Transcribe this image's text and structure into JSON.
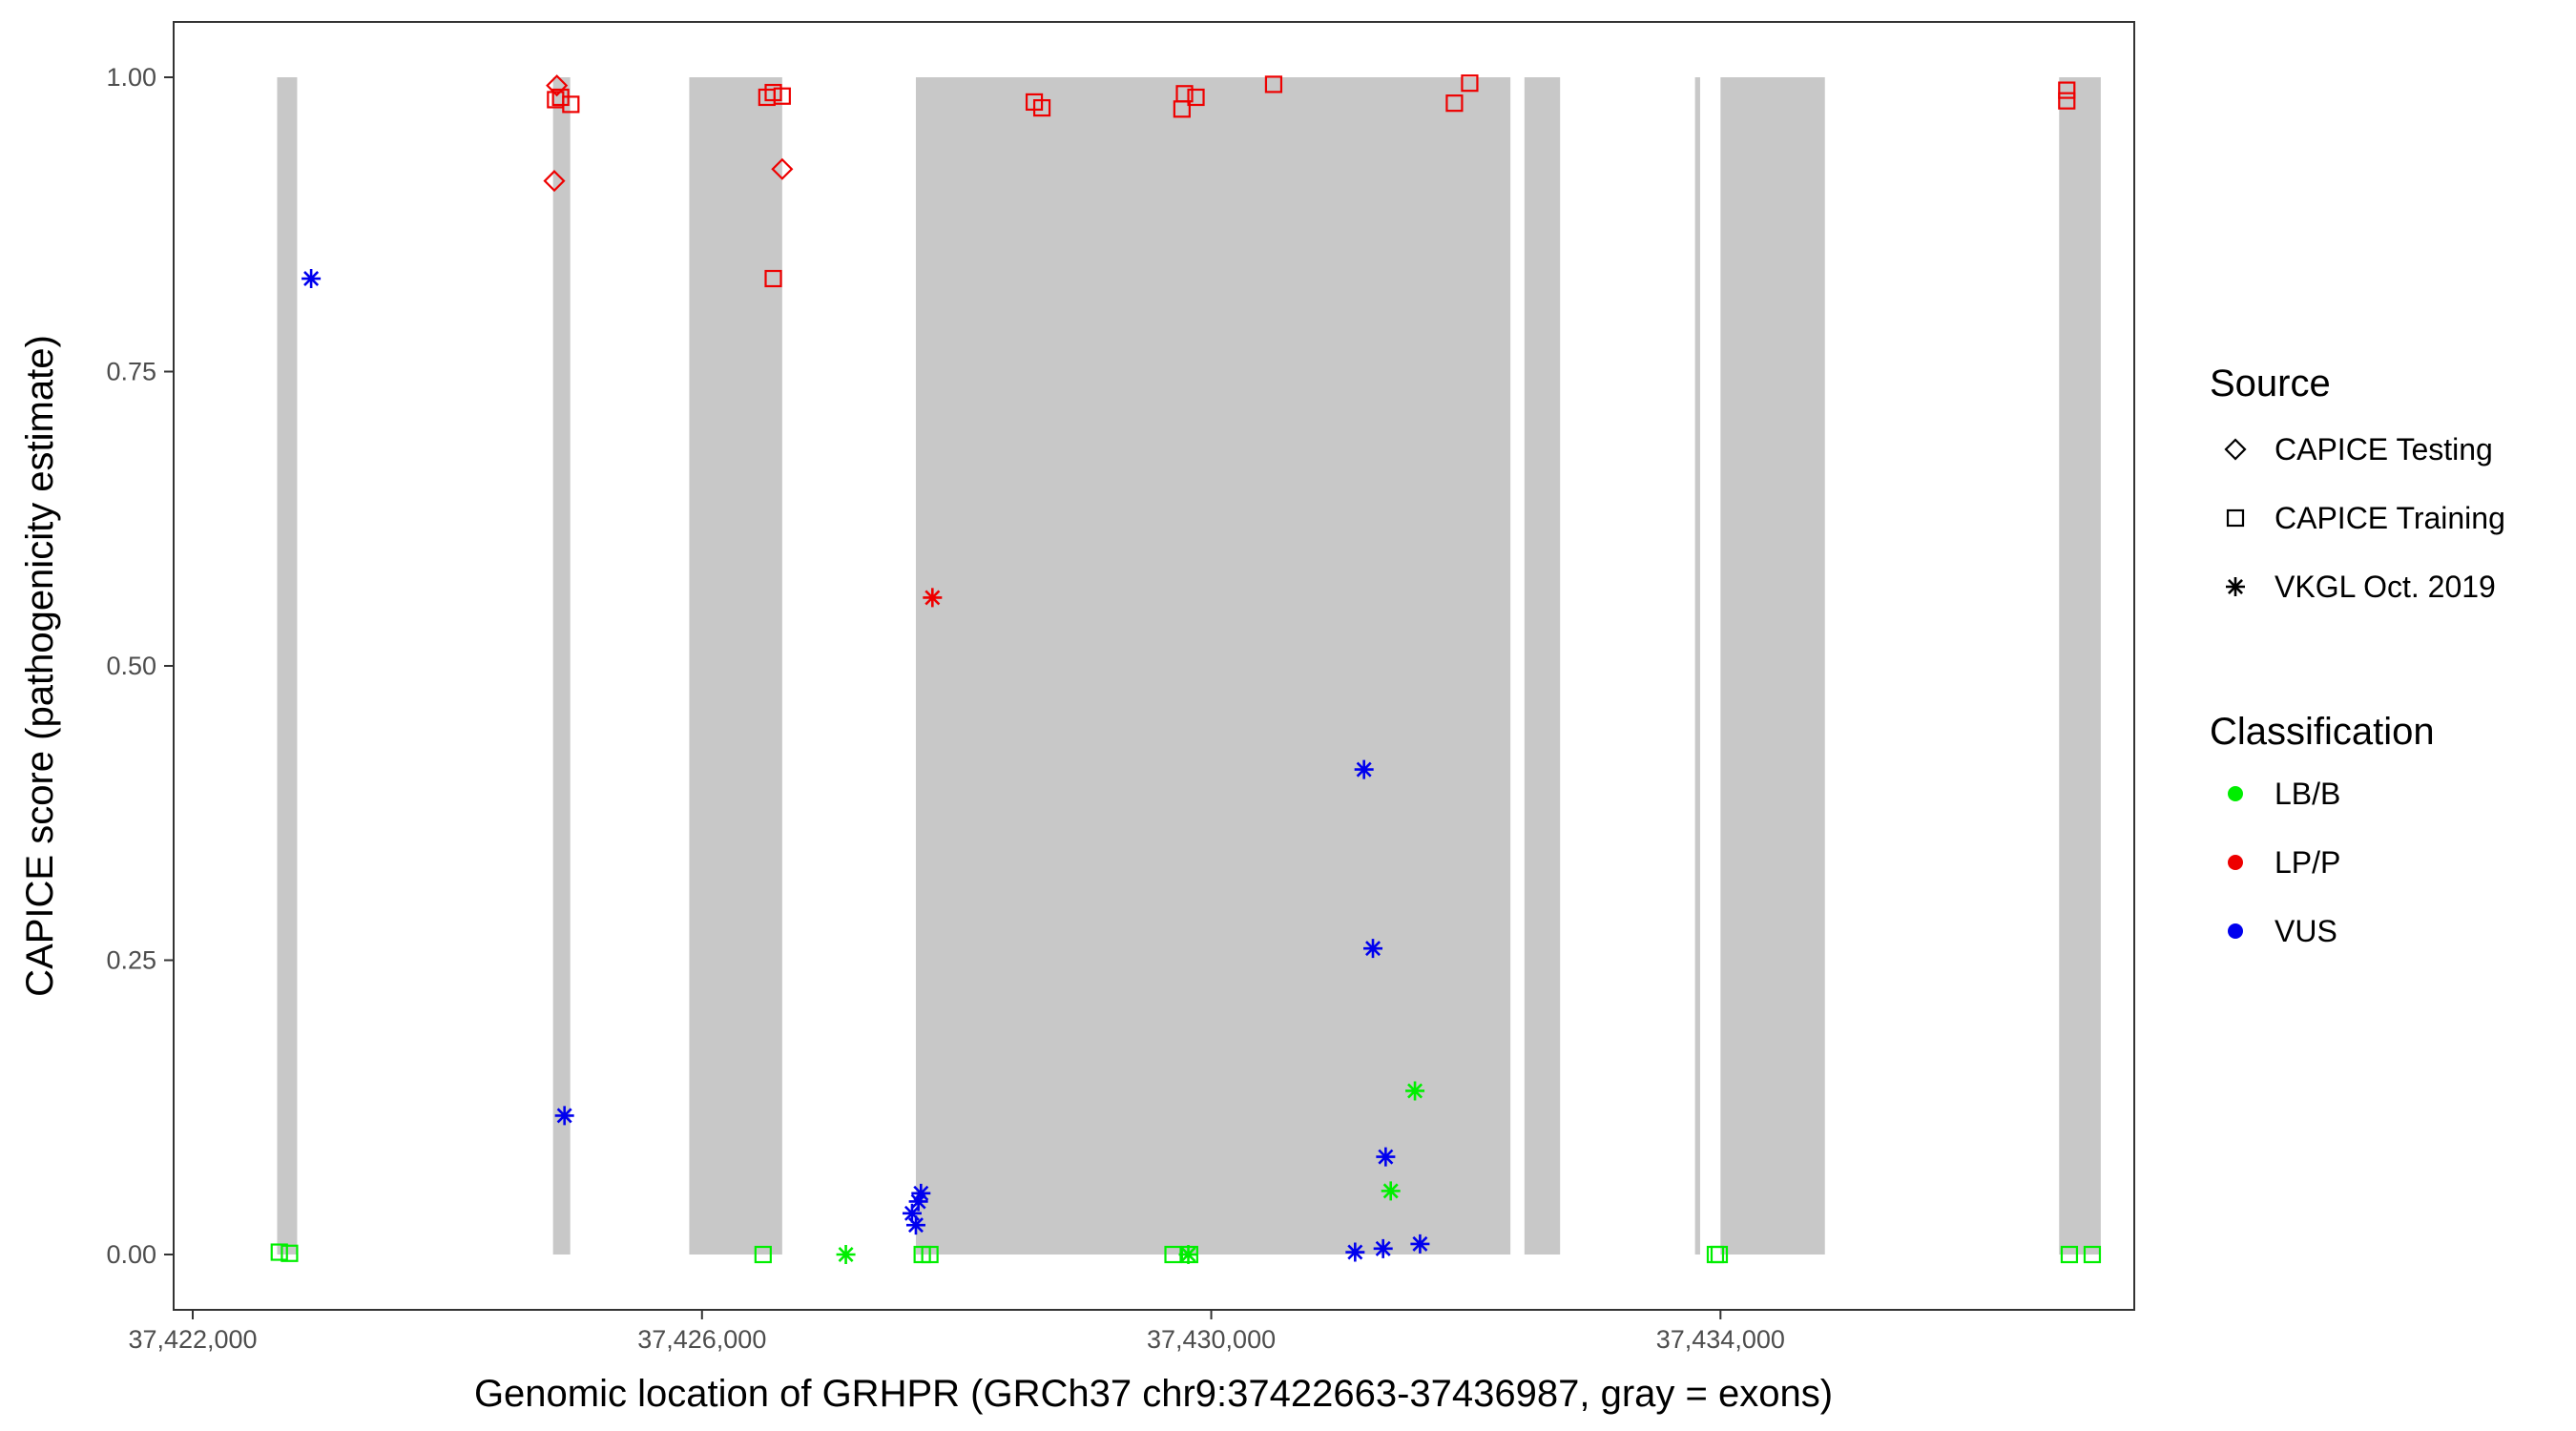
{
  "chart_data": {
    "type": "scatter",
    "title": "",
    "xlabel": "Genomic location of GRHPR (GRCh37 chr9:37422663-37436987, gray = exons)",
    "ylabel": "CAPICE score (pathogenicity estimate)",
    "xlim": [
      37421850,
      37437250
    ],
    "ylim": [
      -0.047,
      1.047
    ],
    "x_ticks": [
      37422000,
      37426000,
      37430000,
      37434000
    ],
    "x_tick_labels": [
      "37,422,000",
      "37,426,000",
      "37,430,000",
      "37,434,000"
    ],
    "y_ticks": [
      0,
      0.25,
      0.5,
      0.75,
      1.0
    ],
    "y_tick_labels": [
      "0.00",
      "0.25",
      "0.50",
      "0.75",
      "1.00"
    ],
    "grid": false,
    "exons": [
      {
        "start": 37422663,
        "end": 37422820
      },
      {
        "start": 37424830,
        "end": 37424965
      },
      {
        "start": 37425900,
        "end": 37426630
      },
      {
        "start": 37427680,
        "end": 37432350
      },
      {
        "start": 37432460,
        "end": 37432740
      },
      {
        "start": 37433800,
        "end": 37433840
      },
      {
        "start": 37434000,
        "end": 37434820
      },
      {
        "start": 37436660,
        "end": 37436987
      }
    ],
    "exon_color": "#c8c8c8",
    "legend": {
      "position": "right",
      "source_title": "Source",
      "source_items": [
        {
          "label": "CAPICE Testing",
          "shape": "diamond"
        },
        {
          "label": "CAPICE Training",
          "shape": "square"
        },
        {
          "label": "VKGL Oct. 2019",
          "shape": "asterisk"
        }
      ],
      "class_title": "Classification",
      "class_items": [
        {
          "label": "LB/B",
          "color": "#00ee00"
        },
        {
          "label": "LP/P",
          "color": "#ee0000"
        },
        {
          "label": "VUS",
          "color": "#0000ee"
        }
      ]
    },
    "points": [
      {
        "x": 37424860,
        "y": 0.993,
        "source": "CAPICE Testing",
        "class": "LP/P"
      },
      {
        "x": 37424840,
        "y": 0.912,
        "source": "CAPICE Testing",
        "class": "LP/P"
      },
      {
        "x": 37426630,
        "y": 0.922,
        "source": "CAPICE Testing",
        "class": "LP/P"
      },
      {
        "x": 37424850,
        "y": 0.981,
        "source": "CAPICE Training",
        "class": "LP/P"
      },
      {
        "x": 37424890,
        "y": 0.983,
        "source": "CAPICE Training",
        "class": "LP/P"
      },
      {
        "x": 37424970,
        "y": 0.977,
        "source": "CAPICE Training",
        "class": "LP/P"
      },
      {
        "x": 37426510,
        "y": 0.983,
        "source": "CAPICE Training",
        "class": "LP/P"
      },
      {
        "x": 37426560,
        "y": 0.987,
        "source": "CAPICE Training",
        "class": "LP/P"
      },
      {
        "x": 37426630,
        "y": 0.984,
        "source": "CAPICE Training",
        "class": "LP/P"
      },
      {
        "x": 37426560,
        "y": 0.829,
        "source": "CAPICE Training",
        "class": "LP/P"
      },
      {
        "x": 37428610,
        "y": 0.979,
        "source": "CAPICE Training",
        "class": "LP/P"
      },
      {
        "x": 37428670,
        "y": 0.974,
        "source": "CAPICE Training",
        "class": "LP/P"
      },
      {
        "x": 37429770,
        "y": 0.973,
        "source": "CAPICE Training",
        "class": "LP/P"
      },
      {
        "x": 37429790,
        "y": 0.986,
        "source": "CAPICE Training",
        "class": "LP/P"
      },
      {
        "x": 37429880,
        "y": 0.983,
        "source": "CAPICE Training",
        "class": "LP/P"
      },
      {
        "x": 37430490,
        "y": 0.994,
        "source": "CAPICE Training",
        "class": "LP/P"
      },
      {
        "x": 37431910,
        "y": 0.978,
        "source": "CAPICE Training",
        "class": "LP/P"
      },
      {
        "x": 37432030,
        "y": 0.995,
        "source": "CAPICE Training",
        "class": "LP/P"
      },
      {
        "x": 37436720,
        "y": 0.989,
        "source": "CAPICE Training",
        "class": "LP/P"
      },
      {
        "x": 37436720,
        "y": 0.98,
        "source": "CAPICE Training",
        "class": "LP/P"
      },
      {
        "x": 37422680,
        "y": 0.002,
        "source": "CAPICE Training",
        "class": "LB/B"
      },
      {
        "x": 37422760,
        "y": 0.001,
        "source": "CAPICE Training",
        "class": "LB/B"
      },
      {
        "x": 37426480,
        "y": 0.0,
        "source": "CAPICE Training",
        "class": "LB/B"
      },
      {
        "x": 37427730,
        "y": 0.0,
        "source": "CAPICE Training",
        "class": "LB/B"
      },
      {
        "x": 37427790,
        "y": 0.0,
        "source": "CAPICE Training",
        "class": "LB/B"
      },
      {
        "x": 37429700,
        "y": 0.0,
        "source": "CAPICE Training",
        "class": "LB/B"
      },
      {
        "x": 37429830,
        "y": 0.0,
        "source": "CAPICE Training",
        "class": "LB/B"
      },
      {
        "x": 37433960,
        "y": 0.0,
        "source": "CAPICE Training",
        "class": "LB/B"
      },
      {
        "x": 37433990,
        "y": 0.0,
        "source": "CAPICE Training",
        "class": "LB/B"
      },
      {
        "x": 37436740,
        "y": 0.0,
        "source": "CAPICE Training",
        "class": "LB/B"
      },
      {
        "x": 37436920,
        "y": 0.0,
        "source": "CAPICE Training",
        "class": "LB/B"
      },
      {
        "x": 37422930,
        "y": 0.829,
        "source": "VKGL Oct. 2019",
        "class": "VUS"
      },
      {
        "x": 37424920,
        "y": 0.118,
        "source": "VKGL Oct. 2019",
        "class": "VUS"
      },
      {
        "x": 37427650,
        "y": 0.035,
        "source": "VKGL Oct. 2019",
        "class": "VUS"
      },
      {
        "x": 37427680,
        "y": 0.025,
        "source": "VKGL Oct. 2019",
        "class": "VUS"
      },
      {
        "x": 37427700,
        "y": 0.045,
        "source": "VKGL Oct. 2019",
        "class": "VUS"
      },
      {
        "x": 37427720,
        "y": 0.052,
        "source": "VKGL Oct. 2019",
        "class": "VUS"
      },
      {
        "x": 37431200,
        "y": 0.412,
        "source": "VKGL Oct. 2019",
        "class": "VUS"
      },
      {
        "x": 37431270,
        "y": 0.26,
        "source": "VKGL Oct. 2019",
        "class": "VUS"
      },
      {
        "x": 37431370,
        "y": 0.083,
        "source": "VKGL Oct. 2019",
        "class": "VUS"
      },
      {
        "x": 37431130,
        "y": 0.002,
        "source": "VKGL Oct. 2019",
        "class": "VUS"
      },
      {
        "x": 37431350,
        "y": 0.005,
        "source": "VKGL Oct. 2019",
        "class": "VUS"
      },
      {
        "x": 37431640,
        "y": 0.009,
        "source": "VKGL Oct. 2019",
        "class": "VUS"
      },
      {
        "x": 37427810,
        "y": 0.558,
        "source": "VKGL Oct. 2019",
        "class": "LP/P"
      },
      {
        "x": 37427130,
        "y": 0.0,
        "source": "VKGL Oct. 2019",
        "class": "LB/B"
      },
      {
        "x": 37429820,
        "y": 0.0,
        "source": "VKGL Oct. 2019",
        "class": "LB/B"
      },
      {
        "x": 37431600,
        "y": 0.139,
        "source": "VKGL Oct. 2019",
        "class": "LB/B"
      },
      {
        "x": 37431410,
        "y": 0.054,
        "source": "VKGL Oct. 2019",
        "class": "LB/B"
      }
    ]
  }
}
